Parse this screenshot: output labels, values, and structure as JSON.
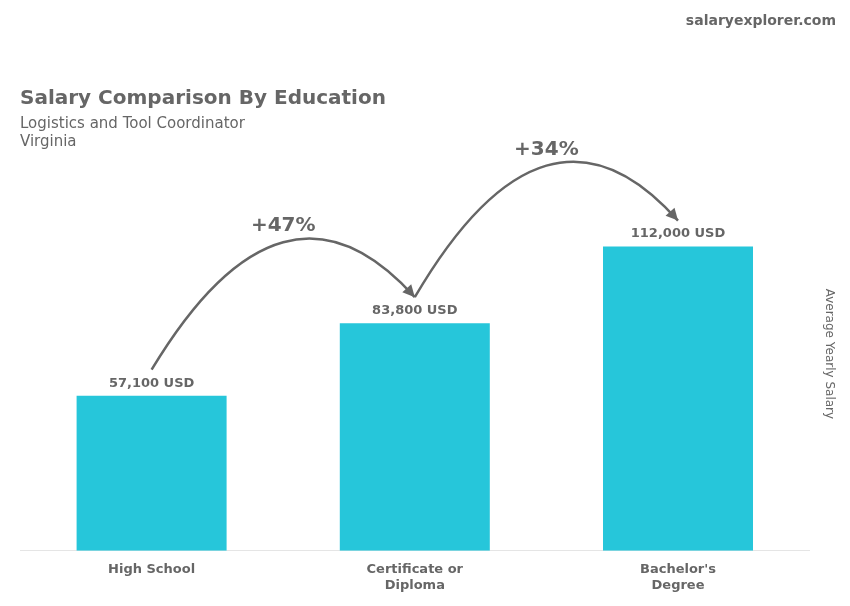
{
  "chart_data": {
    "type": "bar",
    "title": "Salary Comparison By Education",
    "subtitle": [
      "Logistics and Tool Coordinator",
      "Virginia"
    ],
    "y_label": "Average Yearly Salary",
    "categories": [
      "High School",
      "Certificate or\nDiploma",
      "Bachelor's\nDegree"
    ],
    "values": [
      57100,
      83800,
      112000
    ],
    "value_labels": [
      "57,100 USD",
      "83,800 USD",
      "112,000 USD"
    ],
    "data_labels": true,
    "color": "#26c6da",
    "ylim": [
      0,
      145000
    ],
    "tick_labels": "x",
    "grid": false,
    "annotations": [
      {
        "text": "salaryexplorer.com"
      },
      {
        "text": "+47%",
        "from": "High School",
        "to": "Certificate or\nDiploma"
      },
      {
        "text": "+34%",
        "from": "Certificate or\nDiploma",
        "to": "Bachelor's\nDegree"
      }
    ]
  }
}
